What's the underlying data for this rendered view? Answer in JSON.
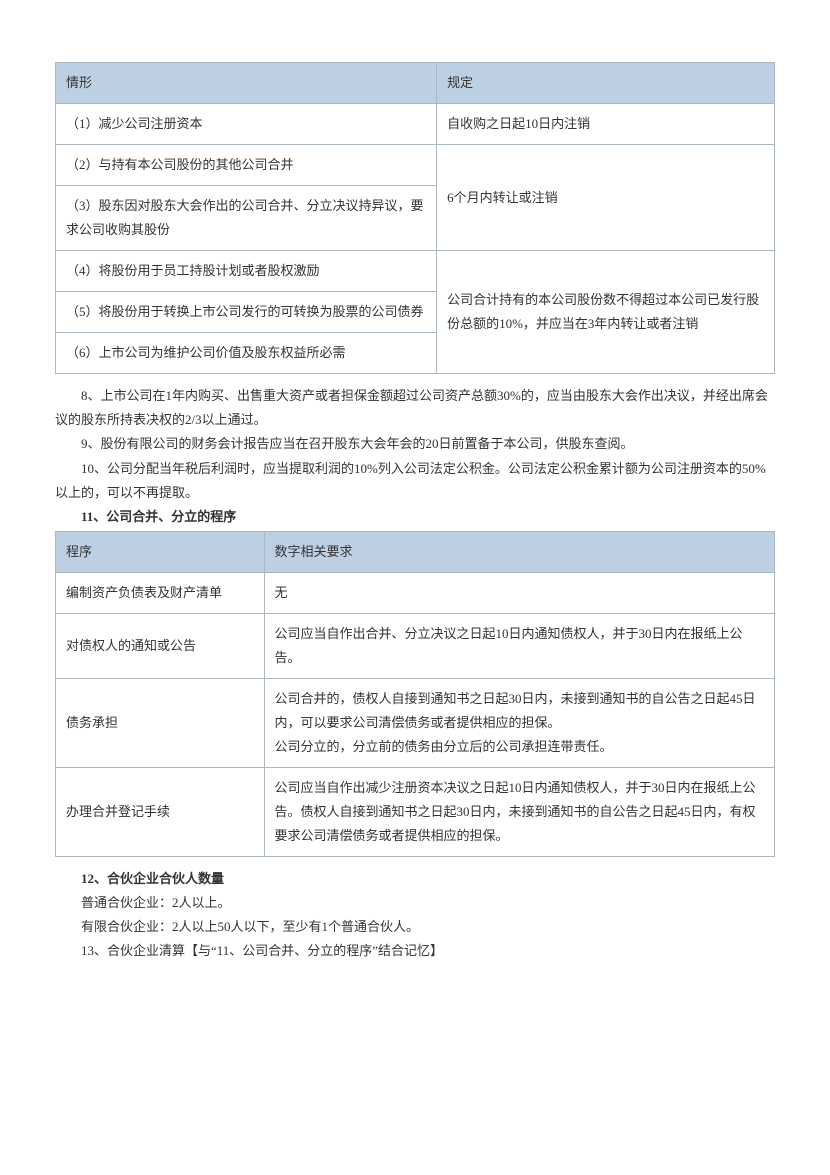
{
  "table1": {
    "headers": [
      "情形",
      "规定"
    ],
    "col1_width": "53%",
    "rows": [
      {
        "c0": "（1）减少公司注册资本",
        "c1": "自收购之日起10日内注销",
        "rowspan1": 1
      },
      {
        "c0": "（2）与持有本公司股份的其他公司合并",
        "c1": "6个月内转让或注销",
        "rowspan1": 2
      },
      {
        "c0": "（3）股东因对股东大会作出的公司合并、分立决议持异议，要求公司收购其股份"
      },
      {
        "c0": "（4）将股份用于员工持股计划或者股权激励",
        "c1": "公司合计持有的本公司股份数不得超过本公司已发行股份总额的10%，并应当在3年内转让或者注销",
        "rowspan1": 3
      },
      {
        "c0": "（5）将股份用于转换上市公司发行的可转换为股票的公司债券"
      },
      {
        "c0": "（6）上市公司为维护公司价值及股东权益所必需"
      }
    ]
  },
  "paragraphs_a": [
    {
      "text": "8、上市公司在1年内购买、出售重大资产或者担保金额超过公司资产总额30%的，应当由股东大会作出决议，并经出席会议的股东所持表决权的2/3以上通过。"
    },
    {
      "text": "9、股份有限公司的财务会计报告应当在召开股东大会年会的20日前置备于本公司，供股东查阅。"
    },
    {
      "text": "10、公司分配当年税后利润时，应当提取利润的10%列入公司法定公积金。公司法定公积金累计额为公司注册资本的50%以上的，可以不再提取。"
    },
    {
      "text": "11、公司合并、分立的程序",
      "bold": true
    }
  ],
  "table2": {
    "headers": [
      "程序",
      "数字相关要求"
    ],
    "col1_width": "29%",
    "rows": [
      {
        "c0": "编制资产负债表及财产清单",
        "c1": "无"
      },
      {
        "c0": "对债权人的通知或公告",
        "c1": "公司应当自作出合并、分立决议之日起10日内通知债权人，并于30日内在报纸上公告。"
      },
      {
        "c0": "债务承担",
        "c1": "公司合并的，债权人自接到通知书之日起30日内，未接到通知书的自公告之日起45日内，可以要求公司清偿债务或者提供相应的担保。\n公司分立的，分立前的债务由分立后的公司承担连带责任。"
      },
      {
        "c0": "办理合并登记手续",
        "c1": "公司应当自作出减少注册资本决议之日起10日内通知债权人，并于30日内在报纸上公告。债权人自接到通知书之日起30日内，未接到通知书的自公告之日起45日内，有权要求公司清偿债务或者提供相应的担保。"
      }
    ]
  },
  "paragraphs_b": [
    {
      "text": "12、合伙企业合伙人数量",
      "bold": true
    },
    {
      "text": "普通合伙企业：2人以上。"
    },
    {
      "text": "有限合伙企业：2人以上50人以下，至少有1个普通合伙人。"
    },
    {
      "text": "13、合伙企业清算【与“11、公司合并、分立的程序”结合记忆】"
    }
  ]
}
